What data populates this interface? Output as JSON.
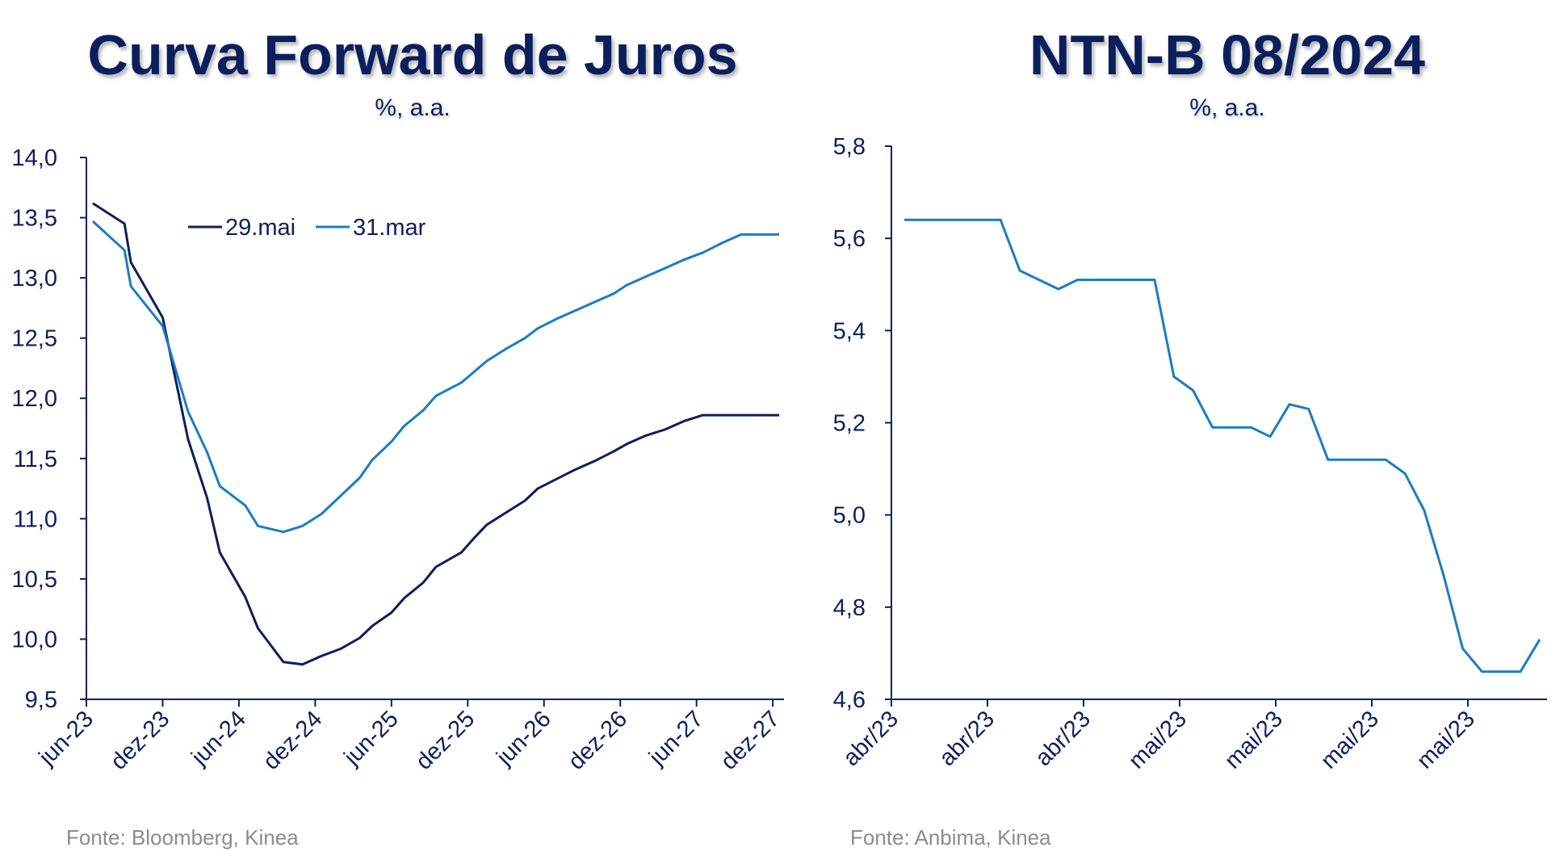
{
  "charts": {
    "left": {
      "title": "Curva Forward de Juros",
      "subtitle": "%, a.a.",
      "source": "Fonte: Bloomberg, Kinea"
    },
    "right": {
      "title": "NTN-B 08/2024",
      "subtitle": "%, a.a.",
      "source": "Fonte: Anbima, Kinea"
    }
  },
  "chart_data": [
    {
      "type": "line",
      "title": "Curva Forward de Juros",
      "subtitle": "%, a.a.",
      "ylim": [
        9.5,
        14.0
      ],
      "yticks": [
        9.5,
        10.0,
        10.5,
        11.0,
        11.5,
        12.0,
        12.5,
        13.0,
        13.5,
        14.0
      ],
      "ytick_labels": [
        "9,5",
        "10,0",
        "10,5",
        "11,0",
        "11,5",
        "12,0",
        "12,5",
        "13,0",
        "13,5",
        "14,0"
      ],
      "x_tick_labels": [
        "jun-23",
        "dez-23",
        "jun-24",
        "dez-24",
        "jun-25",
        "dez-25",
        "jun-26",
        "dez-26",
        "jun-27",
        "dez-27"
      ],
      "x_tick_months": [
        0,
        6,
        12,
        18,
        24,
        30,
        36,
        42,
        48,
        54
      ],
      "xlim_months": [
        0,
        54.5
      ],
      "x_months": [
        0.5,
        3,
        3.5,
        6,
        8,
        9.5,
        10.5,
        12.5,
        13.5,
        15.5,
        17,
        18.5,
        20,
        21.5,
        22.5,
        24,
        25,
        26.5,
        27.5,
        29.5,
        30.5,
        31.5,
        33,
        34.5,
        35.5,
        37,
        38.5,
        40,
        41.5,
        42.5,
        44,
        45.5,
        47,
        48.5,
        50,
        51.5,
        53,
        54.5
      ],
      "legend_position": "top-left",
      "grid": false,
      "series": [
        {
          "name": "29.mai",
          "color": "#0c1f5c",
          "values": [
            13.62,
            13.45,
            13.13,
            12.67,
            11.66,
            11.17,
            10.72,
            10.35,
            10.09,
            9.81,
            9.79,
            9.86,
            9.92,
            10.01,
            10.11,
            10.22,
            10.34,
            10.47,
            10.6,
            10.72,
            10.84,
            10.95,
            11.05,
            11.15,
            11.25,
            11.33,
            11.41,
            11.48,
            11.56,
            11.62,
            11.69,
            11.74,
            11.81,
            11.86,
            11.86,
            11.86,
            11.86,
            11.86
          ]
        },
        {
          "name": "31.mar",
          "color": "#1a7cc7",
          "values": [
            13.47,
            13.23,
            12.93,
            12.6,
            11.89,
            11.55,
            11.27,
            11.11,
            10.94,
            10.89,
            10.94,
            11.04,
            11.19,
            11.34,
            11.49,
            11.64,
            11.77,
            11.9,
            12.02,
            12.13,
            12.22,
            12.31,
            12.41,
            12.5,
            12.58,
            12.66,
            12.73,
            12.8,
            12.87,
            12.94,
            13.01,
            13.08,
            13.15,
            13.21,
            13.29,
            13.36,
            13.36,
            13.36
          ]
        }
      ]
    },
    {
      "type": "line",
      "title": "NTN-B 08/2024",
      "subtitle": "%, a.a.",
      "ylim": [
        4.6,
        5.8
      ],
      "yticks": [
        4.6,
        4.8,
        5.0,
        5.2,
        5.4,
        5.6,
        5.8
      ],
      "ytick_labels": [
        "4,6",
        "4,8",
        "5,0",
        "5,2",
        "5,4",
        "5,6",
        "5,8"
      ],
      "x_tick_labels": [
        "abr/23",
        "abr/23",
        "abr/23",
        "mai/23",
        "mai/23",
        "mai/23",
        "mai/23"
      ],
      "grid": false,
      "series": [
        {
          "name": "",
          "color": "#1a7cc7",
          "values": [
            5.64,
            5.64,
            5.64,
            5.64,
            5.64,
            5.64,
            5.53,
            5.51,
            5.49,
            5.51,
            5.51,
            5.51,
            5.51,
            5.51,
            5.3,
            5.27,
            5.19,
            5.19,
            5.19,
            5.17,
            5.24,
            5.23,
            5.12,
            5.12,
            5.12,
            5.12,
            5.09,
            5.01,
            4.87,
            4.71,
            4.66,
            4.66,
            4.66,
            4.73
          ]
        }
      ]
    }
  ]
}
